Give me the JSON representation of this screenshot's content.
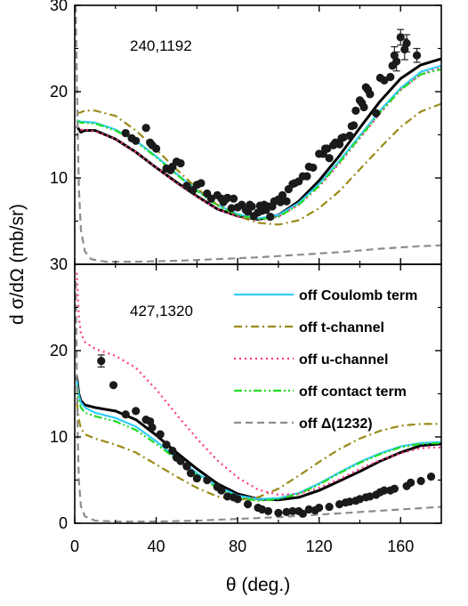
{
  "chart_data": {
    "type": "scatter",
    "xlabel": "θ (deg.)",
    "ylabel": "d σ/dΩ (mb/sr)",
    "xlim": [
      0,
      180
    ],
    "xticks": [
      0,
      40,
      80,
      120,
      160
    ],
    "colors": {
      "full": "#000000",
      "coulomb": "#33ccff",
      "tchannel": "#9a8a18",
      "uchannel": "#ff3388",
      "contact": "#22dd22",
      "delta": "#8c8c8c",
      "data": "#1a1a1a"
    },
    "legend": [
      {
        "key": "coulomb",
        "label": "off  Coulomb term",
        "dash": "solid"
      },
      {
        "key": "tchannel",
        "label": "off  t-channel",
        "dash": "dashdot"
      },
      {
        "key": "uchannel",
        "label": "off  u-channel",
        "dash": "dot"
      },
      {
        "key": "contact",
        "label": "off  contact term",
        "dash": "dashdotdot"
      },
      {
        "key": "delta",
        "label": "off   Δ(1232)",
        "dash": "dash"
      }
    ],
    "panels": [
      {
        "label": "240,1192",
        "ylim": [
          0,
          30
        ],
        "yticks": [
          10,
          20,
          30
        ],
        "ytick_labels": [
          "10",
          "20",
          "30"
        ],
        "series": [
          {
            "key": "full",
            "dash": "solid",
            "x": [
              1,
              3,
              5,
              10,
              20,
              30,
              40,
              50,
              60,
              70,
              80,
              90,
              100,
              110,
              120,
              130,
              140,
              150,
              160,
              170,
              180
            ],
            "y": [
              16,
              15.3,
              15.5,
              15.5,
              14.5,
              13,
              11.2,
              9.5,
              7.9,
              6.4,
              5.6,
              5.2,
              5.7,
              7.3,
              9.7,
              12.6,
              15.8,
              18.9,
              21.5,
              23.1,
              23.8
            ]
          },
          {
            "key": "coulomb",
            "dash": "solid",
            "x": [
              1,
              3,
              5,
              10,
              20,
              30,
              40,
              50,
              60,
              70,
              80,
              90,
              100,
              110,
              120,
              130,
              140,
              150,
              160,
              170,
              180
            ],
            "y": [
              16.7,
              16.5,
              16.5,
              16.4,
              15.6,
              14.3,
              12.5,
              10.5,
              8.6,
              6.9,
              5.8,
              5.3,
              5.7,
              7.1,
              9.3,
              12,
              14.9,
              17.8,
              20.4,
              22.3,
              23
            ]
          },
          {
            "key": "tchannel",
            "dash": "dashdot",
            "x": [
              1,
              3,
              5,
              10,
              20,
              30,
              40,
              50,
              60,
              70,
              80,
              90,
              100,
              110,
              120,
              130,
              140,
              150,
              160,
              170,
              180
            ],
            "y": [
              17.5,
              17.6,
              17.8,
              17.8,
              17.2,
              15.5,
              13.3,
              11,
              8.8,
              6.9,
              5.6,
              4.8,
              4.6,
              5.1,
              6.5,
              8.5,
              11,
              13.5,
              15.9,
              17.7,
              18.6
            ]
          },
          {
            "key": "uchannel",
            "dash": "dot",
            "x": [
              1,
              3,
              5,
              10,
              20,
              30,
              40,
              50,
              60,
              70,
              80,
              90,
              100,
              110,
              120,
              130,
              140,
              150,
              160,
              170,
              180
            ],
            "y": [
              16,
              15.6,
              15.6,
              15.4,
              14.5,
              13,
              11.2,
              9.4,
              7.8,
              6.4,
              5.5,
              5.1,
              5.5,
              6.9,
              9,
              11.7,
              14.6,
              17.5,
              20.2,
              22,
              22.8
            ]
          },
          {
            "key": "contact",
            "dash": "dashdotdot",
            "x": [
              1,
              3,
              5,
              10,
              20,
              30,
              40,
              50,
              60,
              70,
              80,
              90,
              100,
              110,
              120,
              130,
              140,
              150,
              160,
              170,
              180
            ],
            "y": [
              16.6,
              16.4,
              16.4,
              16.3,
              15.5,
              14.2,
              12.4,
              10.4,
              8.5,
              6.8,
              5.7,
              5.2,
              5.5,
              6.9,
              9.1,
              11.8,
              14.7,
              17.6,
              20.2,
              22,
              22.6
            ]
          },
          {
            "key": "delta",
            "dash": "dash",
            "x": [
              0.5,
              1,
              1.5,
              2,
              3,
              5,
              8,
              15,
              30,
              50,
              70,
              90,
              110,
              130,
              150,
              170,
              180
            ],
            "y": [
              30,
              22,
              15,
              9,
              4,
              1.5,
              0.6,
              0.3,
              0.3,
              0.4,
              0.6,
              0.8,
              1.1,
              1.4,
              1.8,
              2.1,
              2.2
            ]
          }
        ],
        "points": {
          "x": [
            25,
            28,
            30,
            35,
            37,
            38,
            40,
            45,
            47,
            48,
            50,
            52,
            55,
            58,
            60,
            62,
            65,
            67,
            70,
            72,
            73,
            74,
            75,
            77,
            78,
            80,
            82,
            84,
            85,
            86,
            87,
            88,
            90,
            91,
            92,
            93,
            94,
            95,
            96,
            97,
            98,
            100,
            101,
            102,
            104,
            105,
            107,
            108,
            110,
            112,
            114,
            115,
            117,
            120,
            122,
            123,
            124,
            125,
            127,
            128,
            130,
            131,
            132,
            135,
            136,
            137,
            138,
            140,
            141,
            142,
            143,
            144,
            145,
            148,
            150,
            152,
            155,
            156,
            157,
            158,
            160,
            162,
            163,
            168
          ],
          "y": [
            15.2,
            14.6,
            14.3,
            15.8,
            14.1,
            13.8,
            13.4,
            11.1,
            10.9,
            11.3,
            11.9,
            11.7,
            9.1,
            8.6,
            9.2,
            9.4,
            8.2,
            7.6,
            8,
            7.6,
            7.2,
            7.5,
            7.7,
            6.5,
            7.6,
            6.6,
            6.9,
            6.3,
            6.1,
            6.9,
            6.7,
            5.6,
            6,
            6.8,
            6.2,
            6.9,
            6.3,
            6.7,
            5.5,
            6.7,
            7.3,
            7.5,
            7.2,
            8,
            7.3,
            8.7,
            9.3,
            9.4,
            9.6,
            10.2,
            10.2,
            11.3,
            11.2,
            12.8,
            12.8,
            13.4,
            13.4,
            12.3,
            13.8,
            14.1,
            13.9,
            14.6,
            14.7,
            14.9,
            16,
            16.1,
            17.8,
            19,
            18.7,
            18.2,
            20.5,
            20.2,
            19.7,
            17.5,
            21.6,
            21.3,
            21.7,
            23,
            24.2,
            23.5,
            26.3,
            24.9,
            25.6,
            24.2
          ],
          "err": [
            0,
            0,
            0,
            0,
            0,
            0,
            0,
            0,
            0,
            0,
            0,
            0,
            0,
            0,
            0,
            0,
            0,
            0,
            0,
            0,
            0,
            0,
            0,
            0,
            0,
            0,
            0,
            0,
            0,
            0,
            0,
            0,
            0,
            0,
            0,
            0,
            0,
            0,
            0,
            0,
            0,
            0,
            0,
            0,
            0,
            0,
            0,
            0,
            0,
            0,
            0,
            0,
            0,
            0,
            0,
            0,
            0,
            0,
            0,
            0,
            0,
            0,
            0,
            0,
            0,
            0,
            0,
            0,
            0,
            0,
            0,
            0,
            0,
            0,
            0,
            0,
            0,
            0,
            1,
            1.1,
            0.9,
            1.2,
            1.0,
            0.8
          ]
        }
      },
      {
        "label": "427,1320",
        "ylim": [
          0,
          30
        ],
        "yticks": [
          0,
          10,
          20,
          30
        ],
        "ytick_labels": [
          "0",
          "10",
          "20",
          "30"
        ],
        "series": [
          {
            "key": "full",
            "dash": "solid",
            "x": [
              1,
              2,
              3,
              5,
              10,
              20,
              30,
              40,
              50,
              60,
              70,
              80,
              90,
              100,
              110,
              120,
              130,
              140,
              150,
              160,
              170,
              180
            ],
            "y": [
              17,
              15,
              14.2,
              13.7,
              13.4,
              13,
              12,
              10.2,
              8.2,
              6.3,
              4.6,
              3.4,
              2.8,
              2.7,
              3,
              3.8,
              4.9,
              6,
              7.2,
              8.2,
              9,
              9.2
            ]
          },
          {
            "key": "coulomb",
            "dash": "solid",
            "x": [
              1,
              2,
              3,
              5,
              10,
              20,
              30,
              40,
              50,
              60,
              70,
              80,
              90,
              100,
              110,
              120,
              130,
              140,
              150,
              160,
              170,
              180
            ],
            "y": [
              16.5,
              14.8,
              14,
              13.4,
              12.8,
              12.2,
              11.2,
              9.5,
              7.6,
              5.8,
              4.3,
              3.2,
              2.8,
              2.9,
              3.5,
              4.6,
              5.9,
              7.1,
              8.1,
              8.9,
              9.3,
              9.4
            ]
          },
          {
            "key": "tchannel",
            "dash": "dashdot",
            "x": [
              1,
              2,
              3,
              5,
              10,
              20,
              30,
              40,
              50,
              60,
              70,
              80,
              90,
              100,
              110,
              120,
              130,
              140,
              150,
              160,
              170,
              180
            ],
            "y": [
              14,
              12,
              11,
              10.3,
              9.8,
              9.1,
              8.2,
              6.8,
              5.4,
              4.1,
              3.1,
              2.7,
              3,
              4,
              5.5,
              7.1,
              8.6,
              9.8,
              10.7,
              11.3,
              11.5,
              11.5
            ]
          },
          {
            "key": "uchannel",
            "dash": "dot",
            "x": [
              1,
              2,
              3,
              5,
              10,
              20,
              30,
              40,
              50,
              60,
              70,
              80,
              90,
              100,
              110,
              120,
              130,
              140,
              150,
              160,
              170,
              180
            ],
            "y": [
              29,
              24,
              22,
              21,
              20.2,
              19.4,
              18,
              15.5,
              12.6,
              9.8,
              7.3,
              5.3,
              3.9,
              3.3,
              3.4,
              4.1,
              5.1,
              6.3,
              7.3,
              8.1,
              8.7,
              8.8
            ]
          },
          {
            "key": "contact",
            "dash": "dashdotdot",
            "x": [
              1,
              2,
              3,
              5,
              10,
              20,
              30,
              40,
              50,
              60,
              70,
              80,
              90,
              100,
              110,
              120,
              130,
              140,
              150,
              160,
              170,
              180
            ],
            "y": [
              16,
              14.3,
              13.4,
              12.8,
              12.4,
              11.8,
              10.8,
              9.2,
              7.4,
              5.6,
              4.1,
              3,
              2.6,
              2.8,
              3.4,
              4.5,
              5.8,
              7,
              8,
              8.8,
              9.2,
              9.3
            ]
          },
          {
            "key": "delta",
            "dash": "dash",
            "x": [
              0.5,
              1,
              1.5,
              2,
              3,
              5,
              10,
              20,
              40,
              60,
              80,
              100,
              120,
              140,
              160,
              180
            ],
            "y": [
              28,
              18,
              10,
              5,
              2,
              0.8,
              0.3,
              0.2,
              0.2,
              0.3,
              0.5,
              0.7,
              1,
              1.3,
              1.6,
              1.9
            ]
          }
        ],
        "points": {
          "x": [
            13,
            19,
            25,
            30,
            35,
            37,
            38,
            42,
            45,
            48,
            50,
            52,
            55,
            57,
            60,
            65,
            70,
            72,
            75,
            78,
            80,
            85,
            90,
            92,
            95,
            100,
            104,
            107,
            110,
            112,
            115,
            118,
            120,
            125,
            130,
            133,
            135,
            138,
            140,
            143,
            145,
            148,
            150,
            152,
            155,
            157,
            163,
            165,
            170,
            175
          ],
          "y": [
            18.8,
            16,
            12.6,
            13,
            12,
            11.8,
            11.1,
            10.3,
            9.1,
            8.4,
            7.6,
            7.2,
            6.6,
            5.8,
            5.2,
            5,
            4.2,
            3.8,
            3.1,
            3,
            2.8,
            2.2,
            1.8,
            1.6,
            1.4,
            1.2,
            1.3,
            1.4,
            1.4,
            1.1,
            1.6,
            1.5,
            1.8,
            1.9,
            2.2,
            2.4,
            2.5,
            2.6,
            2.8,
            3,
            3.1,
            3.3,
            3.6,
            3.8,
            3.8,
            4,
            4.3,
            4.7,
            4.9,
            5.4
          ],
          "err": [
            0.7,
            0,
            0,
            0,
            0,
            0,
            0,
            0,
            0,
            0,
            0,
            0,
            0,
            0,
            0,
            0,
            0,
            0,
            0,
            0,
            0,
            0,
            0,
            0,
            0,
            0,
            0,
            0,
            0,
            0,
            0,
            0,
            0,
            0,
            0,
            0,
            0,
            0,
            0,
            0,
            0,
            0,
            0,
            0,
            0,
            0,
            0,
            0,
            0,
            0
          ]
        }
      }
    ]
  }
}
